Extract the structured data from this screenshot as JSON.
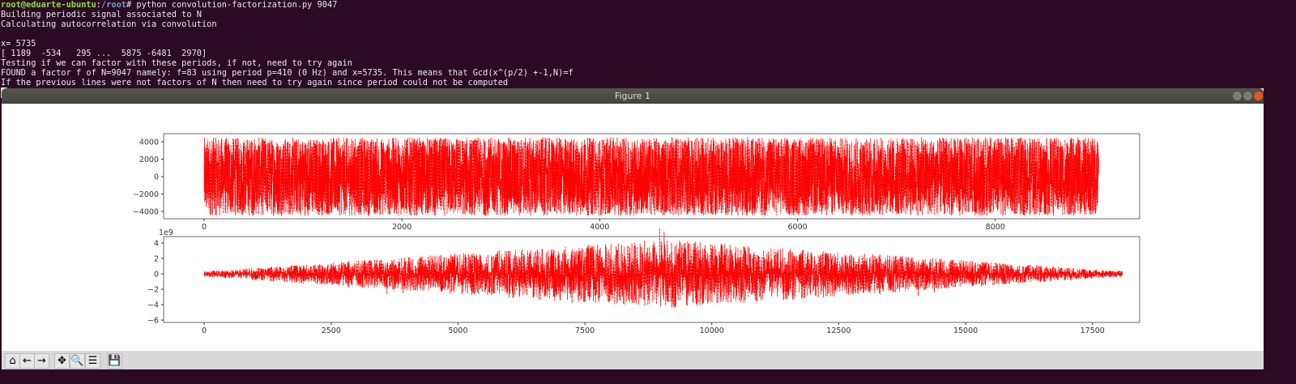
{
  "terminal": {
    "prompt_user": "root@eduarte-ubuntu",
    "prompt_path": "/root",
    "prompt_symbol": "#",
    "command": " python convolution-factorization.py 9047",
    "lines": [
      "Building periodic signal associated to N",
      "Calculating autocorrelation via convolution",
      "",
      "x= 5735",
      "[ 1189  -534   295 ...  5875 -6481  2970]",
      "Testing if we can factor with these periods, if not, need to try again",
      "FOUND a factor f of N=9047 namely: f=83 using period p=410 (0 Hz) and x=5735. This means that Gcd(x^(p/2) +-1,N)=f",
      "If the previous lines were not factors of N then need to try again since period could not be computed"
    ]
  },
  "window": {
    "title": "Figure 1",
    "buttons": [
      "minimize",
      "maximize",
      "close"
    ],
    "close_color": "#e95420"
  },
  "toolbar": [
    {
      "name": "home-icon",
      "glyph": "⌂"
    },
    {
      "name": "back-icon",
      "glyph": "←"
    },
    {
      "name": "forward-icon",
      "glyph": "→"
    },
    {
      "name": "pan-icon",
      "glyph": "✥"
    },
    {
      "name": "zoom-icon",
      "glyph": "🔍"
    },
    {
      "name": "configure-subplots-icon",
      "glyph": "☰"
    },
    {
      "name": "save-icon",
      "glyph": "💾"
    }
  ],
  "chart_data": [
    {
      "type": "line",
      "color": "#ff0000",
      "linestyle": "dashed",
      "x_range": [
        0,
        9046
      ],
      "y_amplitude": 4500,
      "xlim": [
        -410,
        9460
      ],
      "ylim": [
        -4840,
        4930
      ],
      "xticks": [
        "0",
        "2000",
        "4000",
        "6000",
        "8000"
      ],
      "xtick_values": [
        0,
        2000,
        4000,
        6000,
        8000
      ],
      "yticks": [
        "4000",
        "2000",
        "0",
        "−2000",
        "−4000"
      ],
      "ytick_values": [
        4000,
        2000,
        0,
        -2000,
        -4000
      ]
    },
    {
      "type": "line",
      "color": "#ff0000",
      "linestyle": "dashed",
      "x_range": [
        0,
        18092
      ],
      "y_amplitude_peak": 4.5,
      "offset_label": "1e9",
      "xlim": [
        -800,
        18430
      ],
      "ylim": [
        -6.3,
        4.84
      ],
      "xticks": [
        "0",
        "2500",
        "5000",
        "7500",
        "10000",
        "12500",
        "15000",
        "17500"
      ],
      "xtick_values": [
        0,
        2500,
        5000,
        7500,
        10000,
        12500,
        15000,
        17500
      ],
      "yticks": [
        "4",
        "2",
        "0",
        "−2",
        "−4",
        "−6"
      ],
      "ytick_values": [
        4,
        2,
        0,
        -2,
        -4,
        -6
      ]
    }
  ]
}
